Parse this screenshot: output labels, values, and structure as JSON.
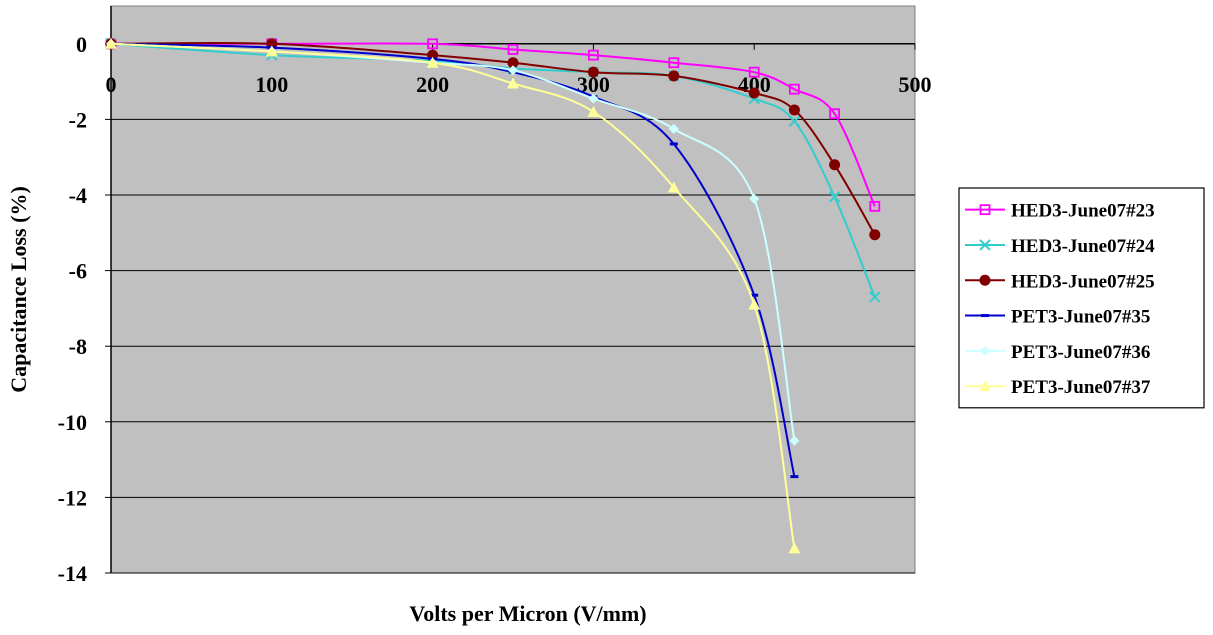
{
  "chart_data": {
    "type": "line",
    "title": "",
    "xlabel": "Volts per Micron (V/mm)",
    "ylabel": "Capacitance Loss (%)",
    "xlim": [
      0,
      500
    ],
    "ylim": [
      -14,
      1
    ],
    "x_ticks": [
      0,
      100,
      200,
      300,
      400,
      500
    ],
    "y_ticks": [
      0,
      -2,
      -4,
      -6,
      -8,
      -10,
      -12,
      -14
    ],
    "plot_background": "#c0c0c0",
    "grid": "horizontal",
    "legend_position": "right",
    "series": [
      {
        "name": "HED3-June07#23",
        "color": "#ff00ff",
        "marker": "square",
        "x": [
          0,
          100,
          200,
          250,
          300,
          350,
          400,
          425,
          450,
          475
        ],
        "y": [
          0,
          0,
          0,
          -0.15,
          -0.3,
          -0.5,
          -0.75,
          -1.2,
          -1.85,
          -4.3
        ]
      },
      {
        "name": "HED3-June07#24",
        "color": "#33cccc",
        "marker": "x",
        "x": [
          0,
          100,
          200,
          250,
          300,
          350,
          400,
          425,
          450,
          475
        ],
        "y": [
          0,
          -0.3,
          -0.45,
          -0.65,
          -0.75,
          -0.85,
          -1.45,
          -2.05,
          -4.05,
          -6.7
        ]
      },
      {
        "name": "HED3-June07#25",
        "color": "#800000",
        "marker": "circle",
        "x": [
          0,
          100,
          200,
          250,
          300,
          350,
          400,
          425,
          450,
          475
        ],
        "y": [
          0,
          0,
          -0.3,
          -0.5,
          -0.75,
          -0.85,
          -1.3,
          -1.75,
          -3.2,
          -5.05
        ]
      },
      {
        "name": "PET3-June07#35",
        "color": "#0000cc",
        "marker": "dash",
        "x": [
          0,
          100,
          200,
          250,
          300,
          350,
          400,
          425
        ],
        "y": [
          0,
          -0.1,
          -0.4,
          -0.75,
          -1.4,
          -2.65,
          -6.65,
          -11.45
        ]
      },
      {
        "name": "PET3-June07#36",
        "color": "#ccffff",
        "marker": "diamond",
        "x": [
          0,
          100,
          200,
          250,
          300,
          350,
          400,
          425
        ],
        "y": [
          0,
          -0.2,
          -0.5,
          -0.7,
          -1.45,
          -2.25,
          -4.1,
          -10.5
        ]
      },
      {
        "name": "PET3-June07#37",
        "color": "#ffff99",
        "marker": "triangle",
        "x": [
          0,
          100,
          200,
          250,
          300,
          350,
          400,
          425
        ],
        "y": [
          0,
          -0.2,
          -0.5,
          -1.05,
          -1.8,
          -3.8,
          -6.9,
          -13.35
        ]
      }
    ]
  }
}
